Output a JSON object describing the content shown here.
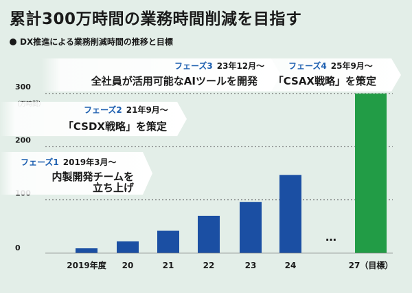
{
  "title": "累計300万時間の業務時間削減を目指す",
  "subtitle": "DX推進による業務削減時間の推移と目標",
  "colors": {
    "bar": "#1b4fa3",
    "target_bar": "#229c46",
    "phase_label": "#1d5fb0",
    "background": "#e3eee8"
  },
  "chart_data": {
    "type": "bar",
    "categories": [
      "2019年度",
      "20",
      "21",
      "22",
      "23",
      "24",
      "27（目標）"
    ],
    "values": [
      9,
      22,
      42,
      70,
      96,
      147,
      300
    ],
    "ylim": [
      0,
      300
    ],
    "yticks": [
      0,
      100,
      200,
      300
    ],
    "yunit": "（万時間）",
    "gap_marker": "…",
    "grid": "dashed"
  },
  "phases": [
    {
      "name": "フェーズ1",
      "date": "2019年3月～",
      "desc_lines": [
        "内製開発チームを",
        "立ち上げ"
      ]
    },
    {
      "name": "フェーズ2",
      "date": "21年9月～",
      "desc_lines": [
        "「CSDX戦略」を策定"
      ]
    },
    {
      "name": "フェーズ3",
      "date": "23年12月～",
      "desc_lines": [
        "全社員が活用可能なAIツールを開発"
      ]
    },
    {
      "name": "フェーズ4",
      "date": "25年9月～",
      "desc_lines": [
        "「CSAX戦略」を策定"
      ]
    }
  ]
}
